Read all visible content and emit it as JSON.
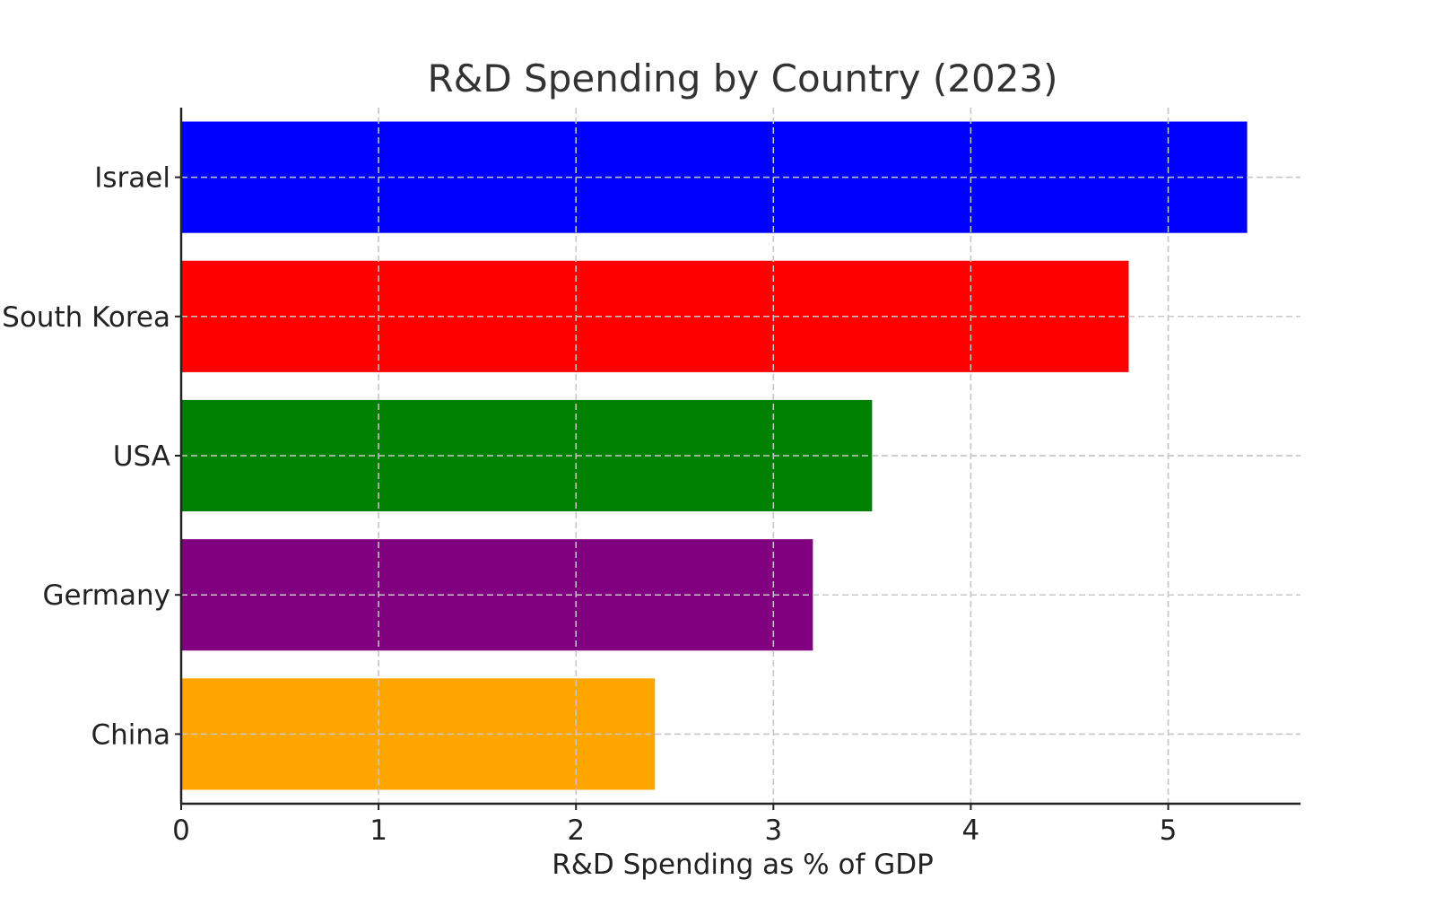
{
  "chart_data": {
    "type": "bar",
    "orientation": "horizontal",
    "title": "R&D Spending by Country (2023)",
    "xlabel": "R&D Spending as % of GDP",
    "ylabel": "",
    "categories": [
      "Israel",
      "South Korea",
      "USA",
      "Germany",
      "China"
    ],
    "values": [
      5.4,
      4.8,
      3.5,
      3.2,
      2.4
    ],
    "colors": [
      "#0000ff",
      "#ff0000",
      "#008000",
      "#800080",
      "#ffa500"
    ],
    "xlim": [
      0,
      5.67
    ],
    "xticks": [
      0,
      1,
      2,
      3,
      4,
      5
    ],
    "grid": true,
    "legend": "none"
  }
}
